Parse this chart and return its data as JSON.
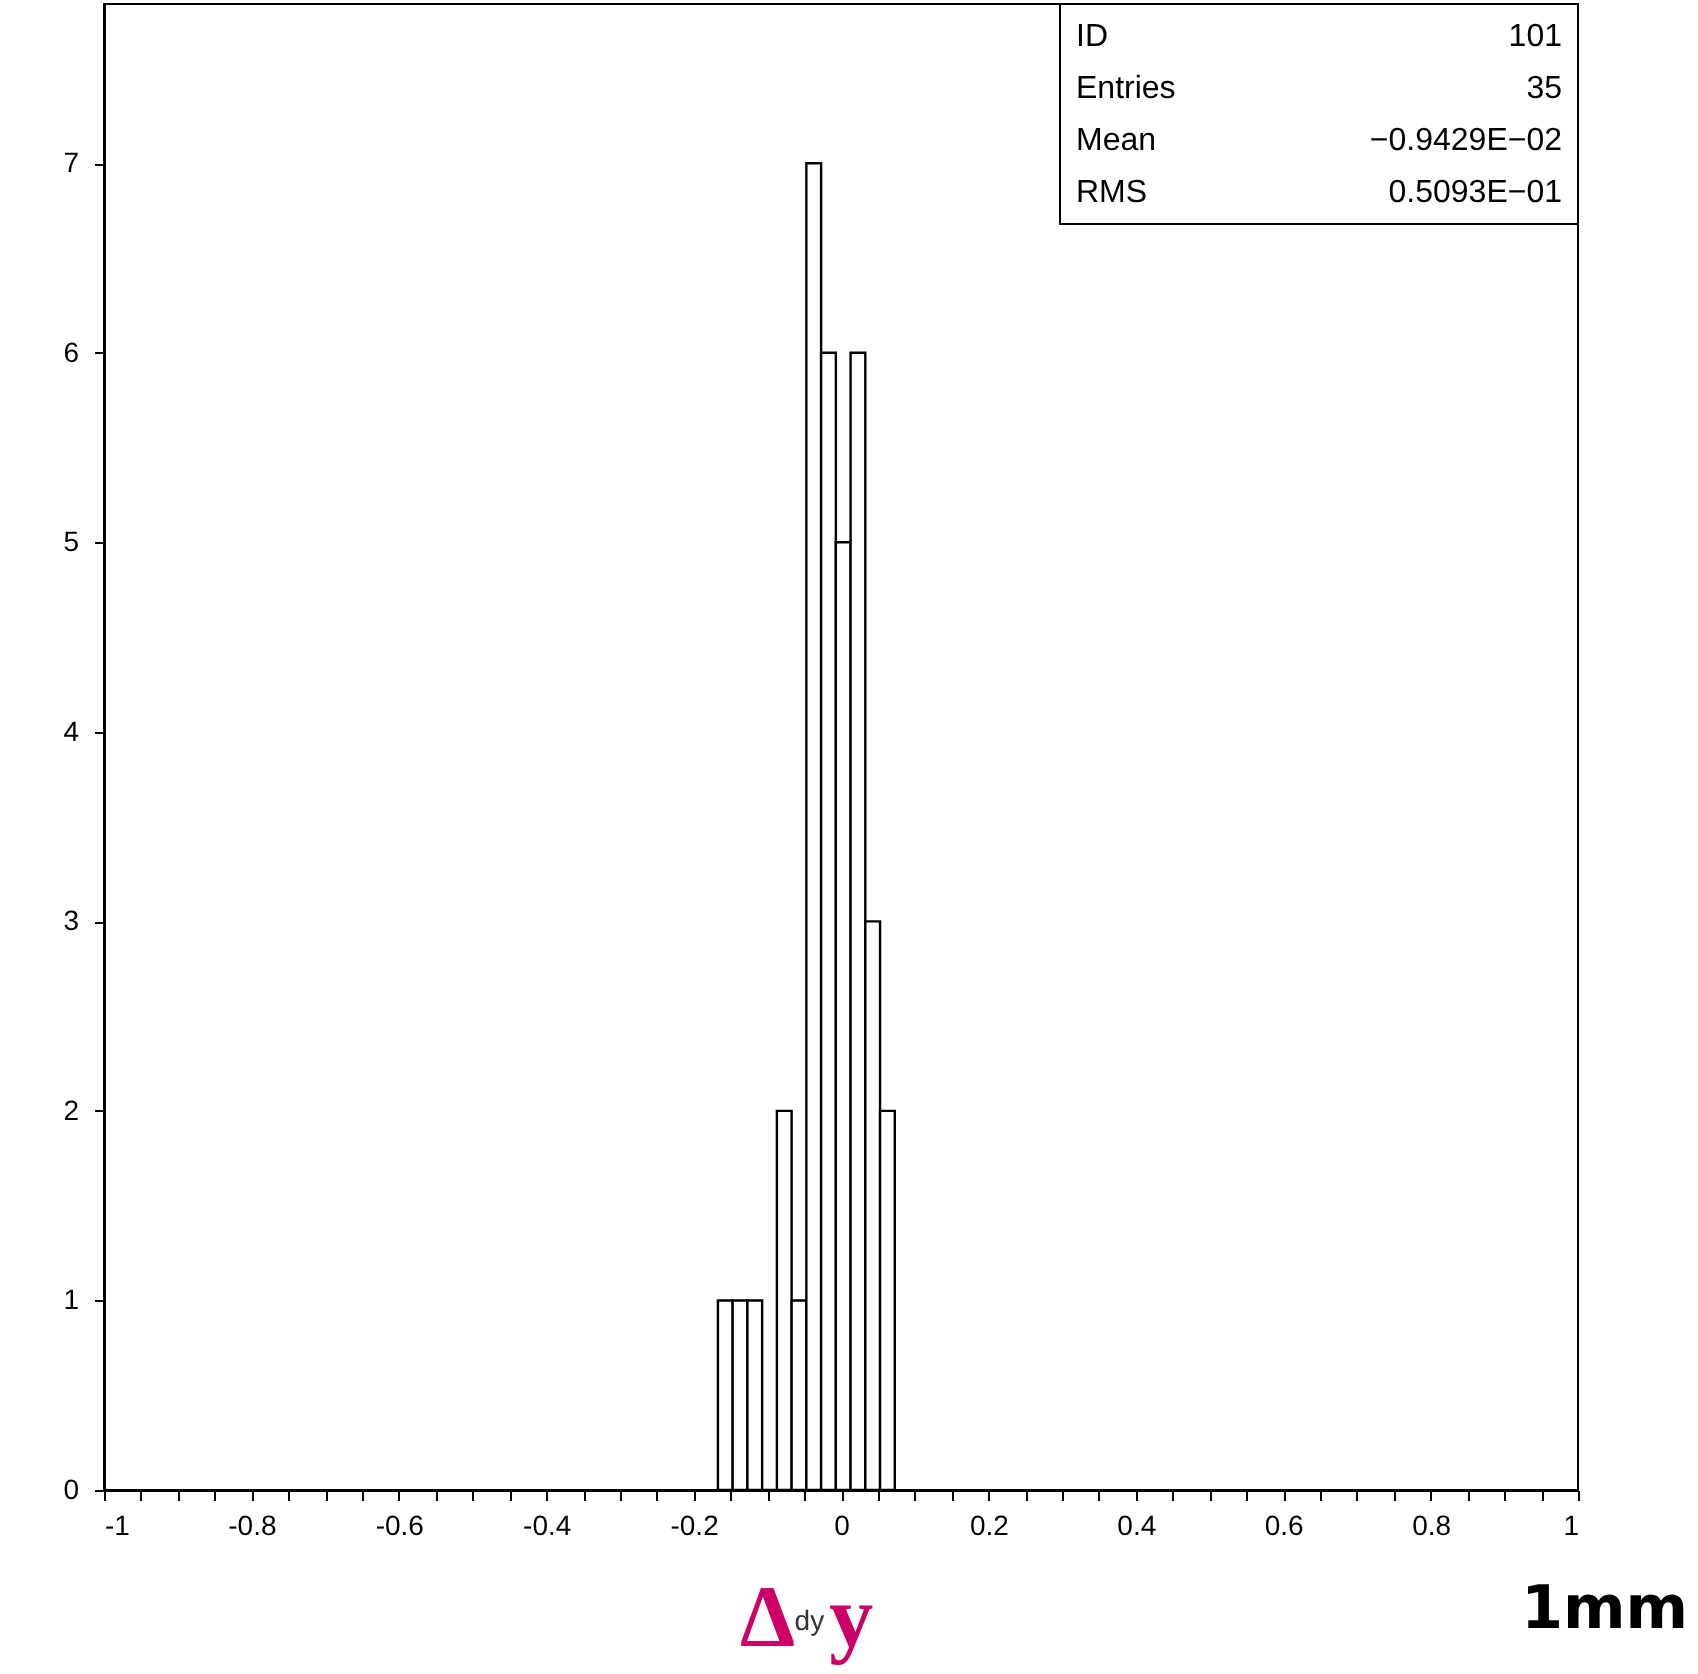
{
  "chart_data": {
    "type": "histogram",
    "bins": [
      -0.167,
      -0.147,
      -0.127,
      -0.107,
      -0.087,
      -0.067,
      -0.047,
      -0.027,
      -0.007,
      0.013,
      0.033,
      0.053,
      0.073
    ],
    "values": [
      1,
      1,
      1,
      0,
      2,
      1,
      7,
      6,
      5,
      6,
      3,
      2
    ],
    "color": "#000000",
    "xlabel": "Δ$^{dy}$y",
    "xlim": [
      -1,
      1
    ],
    "ylim": [
      0,
      7.84
    ],
    "xticks": [
      -1,
      {
        "value": -0.95,
        "label": null
      },
      {
        "value": -0.9,
        "label": null
      },
      {
        "value": -0.85,
        "label": null
      },
      -0.8,
      {
        "value": -0.75,
        "label": null
      },
      {
        "value": -0.7,
        "label": null
      },
      {
        "value": -0.65,
        "label": null
      },
      -0.6,
      {
        "value": -0.55,
        "label": null
      },
      {
        "value": -0.5,
        "label": null
      },
      {
        "value": -0.45,
        "label": null
      },
      -0.4,
      {
        "value": -0.35,
        "label": null
      },
      {
        "value": -0.3,
        "label": null
      },
      {
        "value": -0.25,
        "label": null
      },
      -0.2,
      {
        "value": -0.15,
        "label": null
      },
      {
        "value": -0.1,
        "label": null
      },
      {
        "value": -0.05,
        "label": null
      },
      0,
      {
        "value": 0.05,
        "label": null
      },
      {
        "value": 0.1,
        "label": null
      },
      {
        "value": 0.15,
        "label": null
      },
      0.2,
      {
        "value": 0.25,
        "label": null
      },
      {
        "value": 0.3,
        "label": null
      },
      {
        "value": 0.35,
        "label": null
      },
      0.4,
      {
        "value": 0.45,
        "label": null
      },
      {
        "value": 0.5,
        "label": null
      },
      {
        "value": 0.55,
        "label": null
      },
      0.6,
      {
        "value": 0.65,
        "label": null
      },
      {
        "value": 0.7,
        "label": null
      },
      {
        "value": 0.75,
        "label": null
      },
      0.8,
      {
        "value": 0.85,
        "label": null
      },
      {
        "value": 0.9,
        "label": null
      },
      {
        "value": 0.95,
        "label": null
      },
      1
    ],
    "yticks": [
      0,
      1,
      2,
      3,
      4,
      5,
      6,
      7
    ],
    "grid": false,
    "annotations": [
      "ID",
      "101",
      "Entries",
      "35",
      "Mean",
      "−0.9429E−02",
      "RMS",
      "0.5093E−01",
      "1mm"
    ]
  }
}
